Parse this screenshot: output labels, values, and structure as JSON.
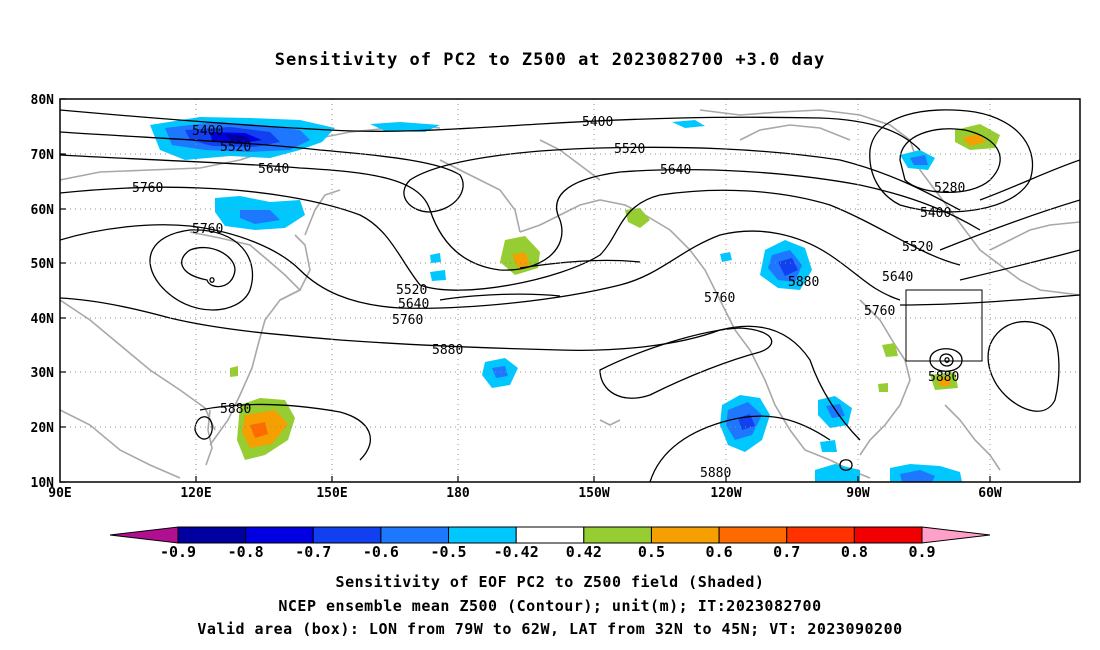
{
  "title": "Sensitivity of PC2 to Z500 at 2023082700 +3.0 day",
  "lat_labels": [
    "80N",
    "70N",
    "60N",
    "50N",
    "40N",
    "30N",
    "20N",
    "10N"
  ],
  "lon_labels": [
    "90E",
    "120E",
    "150E",
    "180",
    "150W",
    "120W",
    "90W",
    "60W"
  ],
  "contour_labels": {
    "c5400a": "5400",
    "c5520a": "5520",
    "c5640a": "5640",
    "c5760a": "5760",
    "c5760b": "5760",
    "c5400b": "5400",
    "c5520b": "5520",
    "c5640b": "5640",
    "c5520c": "5520",
    "c5640c": "5640",
    "c5760c": "5760",
    "c5880a": "5880",
    "c5880b": "5880",
    "c5760d": "5760",
    "c5880c": "5880",
    "c5280": "5280",
    "c5400c": "5400",
    "c5520d": "5520",
    "c5640d": "5640",
    "c5760e": "5760",
    "c5880d": "5880",
    "c5880e": "5880"
  },
  "colorbar": {
    "labels": [
      "-0.9",
      "-0.8",
      "-0.7",
      "-0.6",
      "-0.5",
      "-0.42",
      "0.42",
      "0.5",
      "0.6",
      "0.7",
      "0.8",
      "0.9"
    ],
    "colors": [
      "#b01090",
      "#0000a0",
      "#0000e0",
      "#1040f0",
      "#1e78ff",
      "#00c8ff",
      "#ffffff",
      "#96cd32",
      "#f5a000",
      "#ff6a00",
      "#ff3200",
      "#f00000",
      "#ffa0c8"
    ]
  },
  "captions": {
    "line1": "Sensitivity of EOF PC2 to Z500 field (Shaded)",
    "line2": "NCEP ensemble mean Z500 (Contour); unit(m); IT:2023082700",
    "line3": "Valid area (box): LON from 79W to 62W, LAT from 32N to 45N; VT: 2023090200"
  }
}
